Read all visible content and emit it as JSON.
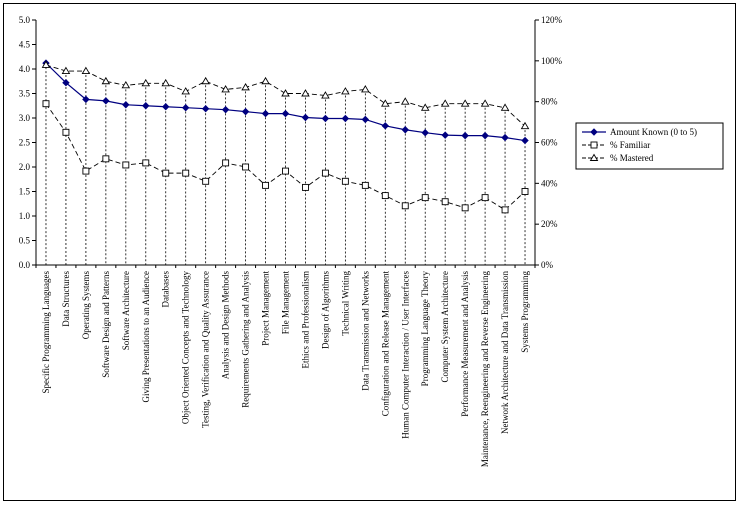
{
  "chart_data": {
    "type": "line",
    "categories": [
      "Specific Programming Languages",
      "Data Structures",
      "Operating Systems",
      "Software Design and Patterns",
      "Software Architecture",
      "Giving Presentations to an Audience",
      "Databases",
      "Object Oriented Concepts and Technology",
      "Testing, Verification and Quality Assurance",
      "Analysis and Design Methods",
      "Requirements Gathering and Analysis",
      "Project Management",
      "File Management",
      "Ethics and Professionalism",
      "Design of Algorithms",
      "Technical Writing",
      "Data Transmission and Networks",
      "Configuration and Release Management",
      "Human Computer Interaction / User Interfaces",
      "Programming Language Theory",
      "Computer System Architecture",
      "Performance Measurement and Analysis",
      "Maintenance, Reengineering and Reverse Engineering",
      "Network Architecture and Data Transmission",
      "Systems Programming"
    ],
    "series": [
      {
        "name": "Amount Known (0 to 5)",
        "axis": "left",
        "marker": "diamond",
        "line": "solid",
        "values": [
          4.12,
          3.72,
          3.38,
          3.35,
          3.27,
          3.25,
          3.23,
          3.21,
          3.19,
          3.17,
          3.13,
          3.09,
          3.09,
          3.01,
          2.99,
          2.99,
          2.97,
          2.84,
          2.76,
          2.7,
          2.65,
          2.64,
          2.64,
          2.6,
          2.54
        ]
      },
      {
        "name": "% Familiar",
        "axis": "right",
        "marker": "square",
        "line": "dashed",
        "values": [
          79,
          65,
          46,
          52,
          49,
          50,
          45,
          45,
          41,
          50,
          48,
          39,
          46,
          38,
          45,
          41,
          39,
          34,
          29,
          33,
          31,
          28,
          33,
          27,
          36
        ]
      },
      {
        "name": "% Mastered",
        "axis": "right",
        "marker": "triangle",
        "line": "dashed",
        "values": [
          98,
          95,
          95,
          90,
          88,
          89,
          89,
          85,
          90,
          86,
          87,
          90,
          84,
          84,
          83,
          85,
          86,
          79,
          80,
          77,
          79,
          79,
          79,
          77,
          68
        ]
      }
    ],
    "y_left": {
      "min": 0,
      "max": 5,
      "step": 0.5,
      "ticks": [
        "0.0",
        "0.5",
        "1.0",
        "1.5",
        "2.0",
        "2.5",
        "3.0",
        "3.5",
        "4.0",
        "4.5",
        "5.0"
      ]
    },
    "y_right": {
      "min": 0,
      "max": 120,
      "step": 20,
      "ticks": [
        "0%",
        "20%",
        "40%",
        "60%",
        "80%",
        "100%",
        "120%"
      ]
    },
    "drop_lines": true,
    "legend_position": "right",
    "title": "",
    "xlabel": "",
    "ylabel": ""
  }
}
